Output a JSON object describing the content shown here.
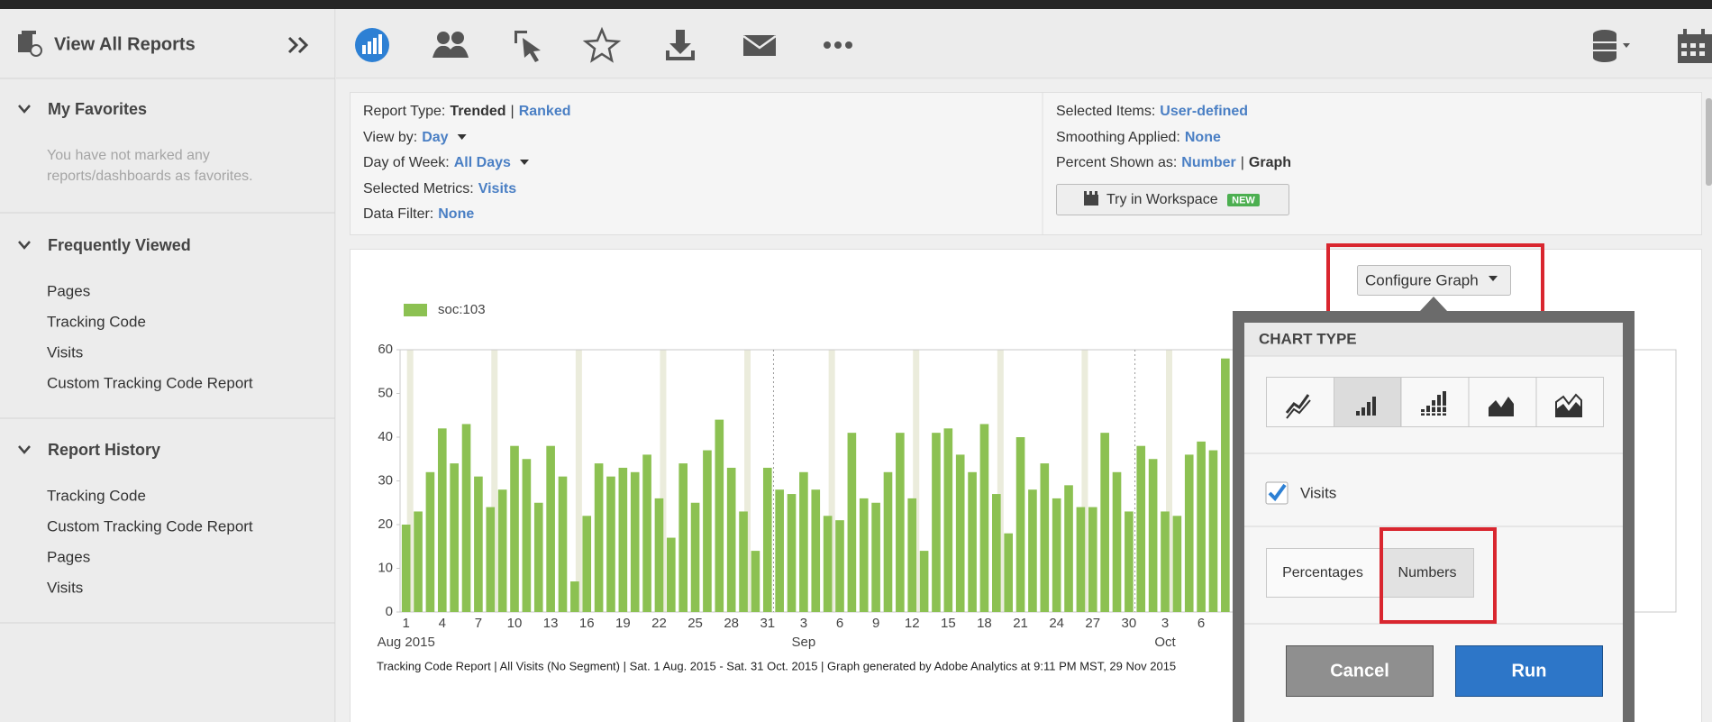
{
  "sidebar": {
    "title": "View All Reports",
    "sections": [
      {
        "title": "My Favorites",
        "note": [
          "You have not marked any",
          "reports/dashboards as favorites."
        ]
      },
      {
        "title": "Frequently Viewed",
        "items": [
          "Pages",
          "Tracking Code",
          "Visits",
          "Custom Tracking Code Report"
        ]
      },
      {
        "title": "Report History",
        "items": [
          "Tracking Code",
          "Custom Tracking Code Report",
          "Pages",
          "Visits"
        ]
      }
    ]
  },
  "info": {
    "left": [
      {
        "segments": [
          {
            "text": "Report Type:",
            "kind": "label"
          },
          {
            "text": "Trended",
            "kind": "bold"
          },
          {
            "text": "|",
            "kind": "label"
          },
          {
            "text": "Ranked",
            "kind": "link"
          }
        ]
      },
      {
        "segments": [
          {
            "text": "View by:",
            "kind": "label"
          },
          {
            "text": "Day",
            "kind": "link"
          }
        ],
        "caret": true
      },
      {
        "segments": [
          {
            "text": "Day of Week:",
            "kind": "label"
          },
          {
            "text": "All Days",
            "kind": "link"
          }
        ],
        "caret": true
      },
      {
        "segments": [
          {
            "text": "Selected Metrics:",
            "kind": "label"
          },
          {
            "text": "Visits",
            "kind": "link"
          }
        ]
      },
      {
        "segments": [
          {
            "text": "Data Filter:",
            "kind": "label"
          },
          {
            "text": "None",
            "kind": "link"
          }
        ]
      }
    ],
    "right": [
      {
        "segments": [
          {
            "text": "Selected Items:",
            "kind": "label"
          },
          {
            "text": "User-defined",
            "kind": "link"
          }
        ]
      },
      {
        "segments": [
          {
            "text": "Smoothing Applied:",
            "kind": "label"
          },
          {
            "text": "None",
            "kind": "link"
          }
        ]
      },
      {
        "segments": [
          {
            "text": "Percent Shown as:",
            "kind": "label"
          },
          {
            "text": "Number",
            "kind": "link"
          },
          {
            "text": "|",
            "kind": "label"
          },
          {
            "text": "Graph",
            "kind": "bold"
          }
        ]
      }
    ],
    "workspace_button": "Try in Workspace",
    "new_badge": "NEW"
  },
  "graph_config": {
    "button": "Configure Graph",
    "heading": "CHART TYPE",
    "metric": "Visits",
    "percentages": "Percentages",
    "numbers": "Numbers",
    "cancel": "Cancel",
    "run": "Run"
  },
  "chart_data": {
    "type": "bar",
    "series": [
      {
        "name": "soc:103",
        "color": "#8cc152",
        "values": [
          20,
          23,
          32,
          42,
          34,
          43,
          31,
          24,
          28,
          38,
          35,
          25,
          38,
          31,
          7,
          22,
          34,
          31,
          33,
          32,
          36,
          26,
          17,
          34,
          25,
          37,
          44,
          33,
          23,
          14,
          33,
          28,
          27,
          32,
          28,
          22,
          21,
          41,
          26,
          25,
          32,
          41,
          26,
          14,
          41,
          42,
          36,
          32,
          43,
          27,
          18,
          40,
          28,
          34,
          26,
          29,
          24,
          24,
          41,
          32,
          23,
          38,
          35,
          23,
          22,
          36,
          39,
          37,
          58
        ]
      }
    ],
    "categories": [
      "1",
      null,
      null,
      "4",
      null,
      null,
      "7",
      null,
      null,
      "10",
      null,
      null,
      "13",
      null,
      null,
      "16",
      null,
      null,
      "19",
      null,
      null,
      "22",
      null,
      null,
      "25",
      null,
      null,
      "28",
      null,
      null,
      "31",
      null,
      null,
      "3",
      null,
      null,
      "6",
      null,
      null,
      "9",
      null,
      null,
      "12",
      null,
      null,
      "15",
      null,
      null,
      "18",
      null,
      null,
      "21",
      null,
      null,
      "24",
      null,
      null,
      "27",
      null,
      null,
      "30",
      null,
      null,
      "3",
      null,
      null,
      "6",
      null,
      null
    ],
    "x_groups": [
      {
        "label": "Aug 2015",
        "start": 0
      },
      {
        "label": "Sep",
        "start": 31
      },
      {
        "label": "Oct",
        "start": 61
      }
    ],
    "ylim": [
      0,
      60
    ],
    "yticks": [
      0,
      10,
      20,
      30,
      40,
      50,
      60
    ],
    "grid": false,
    "legend": "top-left",
    "footnote": "Tracking Code Report | All Visits (No Segment) | Sat.  1 Aug. 2015 - Sat. 31 Oct. 2015 | Graph generated by Adobe Analytics at  9:11 PM MST, 29 Nov 2015"
  }
}
